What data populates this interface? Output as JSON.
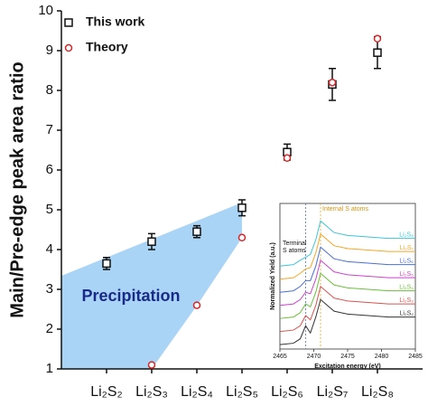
{
  "chart_data": [
    {
      "type": "scatter",
      "ylabel": "Main/Pre-edge peak area ratio",
      "categories": [
        "Li₂S₂",
        "Li₂S₃",
        "Li₂S₄",
        "Li₂S₅",
        "Li₂S₆",
        "Li₂S₇",
        "Li₂S₈"
      ],
      "ylim": [
        1,
        10
      ],
      "yticks": [
        1,
        2,
        3,
        4,
        5,
        6,
        7,
        8,
        9,
        10
      ],
      "legend": "upper left",
      "annotation": "Precipitation",
      "series": [
        {
          "name": "This work",
          "color": "#111111",
          "marker": "square",
          "values": [
            3.65,
            4.2,
            4.45,
            5.05,
            6.45,
            8.15,
            8.95
          ],
          "errors": [
            0.15,
            0.2,
            0.15,
            0.2,
            0.2,
            0.4,
            0.4
          ]
        },
        {
          "name": "Theory",
          "color": "#d62728",
          "marker": "circle",
          "values": [
            null,
            1.1,
            2.6,
            4.3,
            6.3,
            8.2,
            9.3
          ]
        }
      ]
    },
    {
      "type": "line",
      "xlabel": "Excitation energy (eV)",
      "ylabel": "Normalized Yield (a.u.)",
      "x": [
        2465,
        2467,
        2468,
        2468.8,
        2469.5,
        2470.3,
        2471,
        2472,
        2473,
        2475,
        2478,
        2481,
        2485
      ],
      "xlim": [
        2465,
        2485
      ],
      "xticks": [
        2465,
        2470,
        2475,
        2480,
        2485
      ],
      "ylim": [
        0,
        10
      ],
      "annotations": [
        "Terminal",
        "S atoms",
        "Internal S atoms"
      ],
      "vlines": [
        {
          "x": 2468.8,
          "color": "#4a6fd4"
        },
        {
          "x": 2471,
          "color": "#e6a817"
        }
      ],
      "series": [
        {
          "name": "Li₂S₂",
          "color": "#333333",
          "values": [
            0.3,
            0.4,
            0.7,
            1.6,
            1.1,
            2.2,
            3.4,
            3.0,
            2.6,
            2.4,
            2.3,
            2.2,
            2.2
          ]
        },
        {
          "name": "Li₂S₃",
          "color": "#d9534f",
          "values": [
            1.2,
            1.3,
            1.6,
            2.3,
            2.0,
            3.0,
            4.3,
            3.9,
            3.5,
            3.3,
            3.2,
            3.1,
            3.1
          ]
        },
        {
          "name": "Li₂S₄",
          "color": "#6bbf3a",
          "values": [
            2.1,
            2.2,
            2.5,
            3.1,
            2.9,
            3.9,
            5.2,
            4.8,
            4.4,
            4.2,
            4.1,
            4.0,
            4.0
          ]
        },
        {
          "name": "Li₂S₅",
          "color": "#cc44cc",
          "values": [
            3.0,
            3.1,
            3.4,
            3.9,
            3.8,
            4.8,
            6.1,
            5.7,
            5.3,
            5.1,
            5.0,
            4.9,
            4.9
          ]
        },
        {
          "name": "Li₂S₆",
          "color": "#4a6fd4",
          "values": [
            3.9,
            4.0,
            4.3,
            4.7,
            4.7,
            5.7,
            7.0,
            6.6,
            6.2,
            6.0,
            5.9,
            5.8,
            5.8
          ]
        },
        {
          "name": "Li₂S₇",
          "color": "#f5a623",
          "values": [
            4.8,
            4.9,
            5.2,
            5.5,
            5.6,
            6.6,
            7.9,
            7.5,
            7.1,
            6.9,
            6.8,
            6.7,
            6.7
          ]
        },
        {
          "name": "Li₂S₈",
          "color": "#3ec6d8",
          "values": [
            5.7,
            5.8,
            6.1,
            6.3,
            6.5,
            7.5,
            8.8,
            8.4,
            8.0,
            7.8,
            7.7,
            7.6,
            7.6
          ]
        }
      ]
    }
  ]
}
